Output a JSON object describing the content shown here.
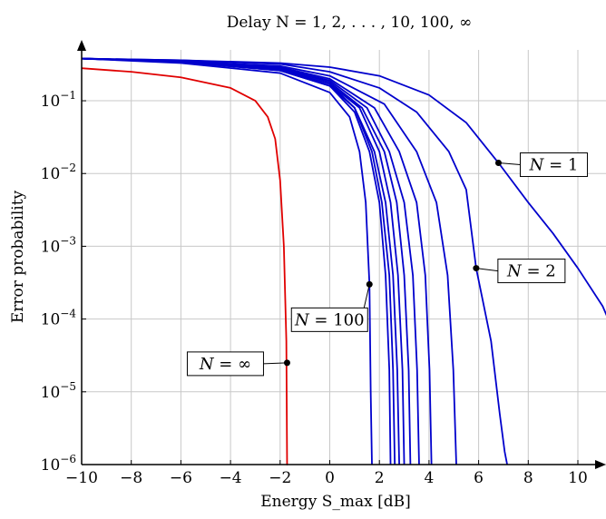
{
  "chart_data": {
    "type": "line",
    "title": "Delay N = 1, 2, . . . , 10, 100, ∞",
    "xlabel": "Energy S_max [dB]",
    "ylabel": "Error probability",
    "xlim": [
      -10,
      11.5
    ],
    "ylim": [
      1e-06,
      0.5
    ],
    "y_scale": "log",
    "grid": true,
    "x_ticks": [
      "−10",
      "−8",
      "−6",
      "−4",
      "−2",
      "0",
      "2",
      "4",
      "6",
      "8",
      "10"
    ],
    "y_ticks": [
      {
        "base": "10",
        "exp": "−6"
      },
      {
        "base": "10",
        "exp": "−5"
      },
      {
        "base": "10",
        "exp": "−4"
      },
      {
        "base": "10",
        "exp": "−3"
      },
      {
        "base": "10",
        "exp": "−2"
      },
      {
        "base": "10",
        "exp": "−1"
      }
    ],
    "series": [
      {
        "key": "N=inf",
        "color": "#e00000",
        "x": [
          -10,
          -8,
          -6,
          -4,
          -3,
          -2.5,
          -2.2,
          -2,
          -1.85,
          -1.75,
          -1.72,
          -1.7
        ],
        "y": [
          0.28,
          0.25,
          0.21,
          0.15,
          0.1,
          0.06,
          0.03,
          0.008,
          0.001,
          5e-05,
          1e-06,
          1e-06
        ]
      },
      {
        "key": "N=100",
        "color": "#0000cc",
        "x": [
          -10,
          -6,
          -2,
          0,
          0.8,
          1.2,
          1.45,
          1.6,
          1.65,
          1.7
        ],
        "y": [
          0.38,
          0.33,
          0.24,
          0.13,
          0.06,
          0.02,
          0.004,
          0.0003,
          1e-05,
          1e-06
        ]
      },
      {
        "key": "N=10",
        "color": "#0000cc",
        "x": [
          -10,
          -6,
          -2,
          0,
          1,
          1.6,
          2.0,
          2.25,
          2.4,
          2.45
        ],
        "y": [
          0.38,
          0.34,
          0.26,
          0.16,
          0.07,
          0.02,
          0.004,
          0.0004,
          2e-05,
          1e-06
        ]
      },
      {
        "key": "N=9",
        "color": "#0000cc",
        "x": [
          -10,
          -6,
          -2,
          0,
          1,
          1.7,
          2.1,
          2.4,
          2.55,
          2.62
        ],
        "y": [
          0.38,
          0.34,
          0.26,
          0.16,
          0.08,
          0.02,
          0.004,
          0.0004,
          2e-05,
          1e-06
        ]
      },
      {
        "key": "N=8",
        "color": "#0000cc",
        "x": [
          -10,
          -6,
          -2,
          0,
          1,
          1.8,
          2.25,
          2.55,
          2.72,
          2.8
        ],
        "y": [
          0.38,
          0.34,
          0.27,
          0.17,
          0.08,
          0.02,
          0.004,
          0.0004,
          2e-05,
          1e-06
        ]
      },
      {
        "key": "N=7",
        "color": "#0000cc",
        "x": [
          -10,
          -6,
          -2,
          0,
          1.2,
          2.0,
          2.45,
          2.75,
          2.93,
          3.0
        ],
        "y": [
          0.38,
          0.34,
          0.27,
          0.17,
          0.08,
          0.02,
          0.004,
          0.0004,
          2e-05,
          1e-06
        ]
      },
      {
        "key": "N=6",
        "color": "#0000cc",
        "x": [
          -10,
          -6,
          -2,
          0,
          1.3,
          2.2,
          2.7,
          3.0,
          3.18,
          3.25
        ],
        "y": [
          0.38,
          0.35,
          0.28,
          0.18,
          0.08,
          0.02,
          0.004,
          0.0004,
          2e-05,
          1e-06
        ]
      },
      {
        "key": "N=5",
        "color": "#0000cc",
        "x": [
          -10,
          -6,
          -2,
          0,
          1.5,
          2.4,
          3.0,
          3.35,
          3.52,
          3.6
        ],
        "y": [
          0.38,
          0.35,
          0.28,
          0.19,
          0.08,
          0.02,
          0.004,
          0.0004,
          2e-05,
          1e-06
        ]
      },
      {
        "key": "N=4",
        "color": "#0000cc",
        "x": [
          -10,
          -6,
          -2,
          0,
          1.8,
          2.8,
          3.5,
          3.85,
          4.02,
          4.1
        ],
        "y": [
          0.38,
          0.35,
          0.29,
          0.2,
          0.08,
          0.02,
          0.004,
          0.0004,
          2e-05,
          1e-06
        ]
      },
      {
        "key": "N=3",
        "color": "#0000cc",
        "x": [
          -10,
          -6,
          -2,
          0,
          2.2,
          3.5,
          4.3,
          4.75,
          4.98,
          5.1
        ],
        "y": [
          0.38,
          0.35,
          0.3,
          0.22,
          0.09,
          0.02,
          0.004,
          0.0004,
          2e-05,
          1e-06
        ]
      },
      {
        "key": "N=2",
        "color": "#0000cc",
        "x": [
          -10,
          -6,
          -2,
          0,
          2,
          3.5,
          4.8,
          5.5,
          5.9,
          6.5,
          6.85,
          7.05,
          7.15
        ],
        "y": [
          0.38,
          0.36,
          0.32,
          0.25,
          0.15,
          0.07,
          0.02,
          0.006,
          0.0005,
          5e-05,
          5e-06,
          1.5e-06,
          1e-06
        ]
      },
      {
        "key": "N=1",
        "color": "#0000cc",
        "x": [
          -10,
          -6,
          -2,
          0,
          2,
          4,
          5.5,
          6.8,
          8,
          9,
          10,
          11,
          11.5
        ],
        "y": [
          0.38,
          0.36,
          0.33,
          0.29,
          0.22,
          0.12,
          0.05,
          0.014,
          0.004,
          0.0015,
          0.0005,
          0.00015,
          6e-05
        ]
      }
    ],
    "annotations": [
      {
        "lhs": "N",
        "rhs": "1",
        "x": 6.8,
        "y": 0.014
      },
      {
        "lhs": "N",
        "rhs": "2",
        "x": 5.9,
        "y": 0.0005
      },
      {
        "lhs": "N",
        "rhs": "100",
        "x": 1.6,
        "y": 0.0003
      },
      {
        "lhs": "N",
        "rhs": "∞",
        "x": -1.72,
        "y": 2.5e-05
      }
    ]
  }
}
